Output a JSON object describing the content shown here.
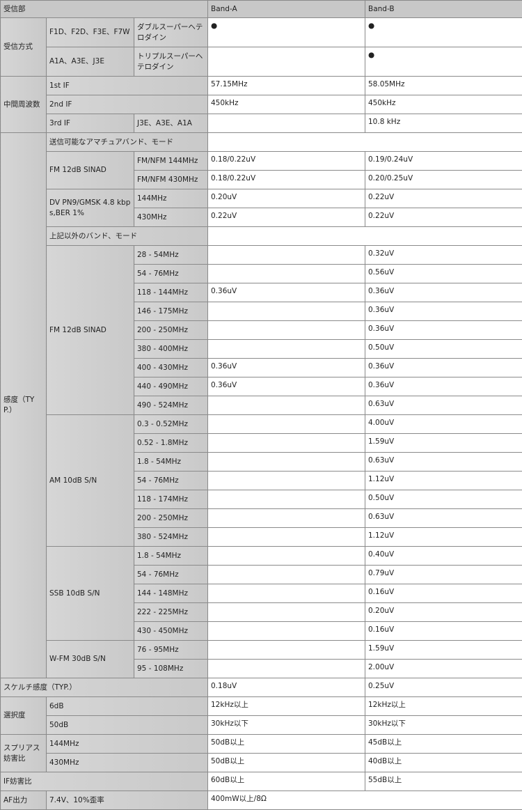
{
  "header": {
    "title": "受信部",
    "band_a": "Band-A",
    "band_b": "Band-B"
  },
  "reception": {
    "label": "受信方式",
    "rows": [
      {
        "mode": "F1D、F2D、F3E、F7W",
        "type": "ダブルスーパーヘテロダイン",
        "a": "●",
        "b": "●"
      },
      {
        "mode": "A1A、A3E、J3E",
        "type": "トリプルスーパーヘテロダイン",
        "a": "",
        "b": "●"
      }
    ]
  },
  "if": {
    "label": "中間周波数",
    "rows": [
      {
        "name": "1st IF",
        "a": "57.15MHz",
        "b": "58.05MHz"
      },
      {
        "name": "2nd IF",
        "a": "450kHz",
        "b": "450kHz"
      },
      {
        "name": "3rd IF",
        "modes": "J3E、A3E、A1A",
        "a": "",
        "b": "10.8 kHz"
      }
    ]
  },
  "sensitivity": {
    "label": "感度（TYP.）",
    "amateur_label": "送信可能なアマチュアバンド、モード",
    "fm": {
      "label": "FM 12dB SINAD",
      "rows": [
        {
          "band": "FM/NFM 144MHz",
          "a": "0.18/0.22uV",
          "b": "0.19/0.24uV"
        },
        {
          "band": "FM/NFM 430MHz",
          "a": "0.18/0.22uV",
          "b": "0.20/0.25uV"
        }
      ]
    },
    "dv": {
      "label": "DV PN9/GMSK 4.8 kbps,BER 1%",
      "rows": [
        {
          "band": "144MHz",
          "a": "0.20uV",
          "b": "0.22uV"
        },
        {
          "band": "430MHz",
          "a": "0.22uV",
          "b": "0.22uV"
        }
      ]
    },
    "other_label": "上記以外のバンド、モード",
    "fm2": {
      "label": "FM 12dB SINAD",
      "rows": [
        {
          "band": "28 - 54MHz",
          "a": "",
          "b": "0.32uV"
        },
        {
          "band": "54 - 76MHz",
          "a": "",
          "b": "0.56uV"
        },
        {
          "band": "118 - 144MHz",
          "a": "0.36uV",
          "b": "0.36uV"
        },
        {
          "band": "146 - 175MHz",
          "a": "",
          "b": "0.36uV"
        },
        {
          "band": "200 - 250MHz",
          "a": "",
          "b": "0.36uV"
        },
        {
          "band": "380 - 400MHz",
          "a": "",
          "b": "0.50uV"
        },
        {
          "band": "400 - 430MHz",
          "a": "0.36uV",
          "b": "0.36uV"
        },
        {
          "band": "440 - 490MHz",
          "a": "0.36uV",
          "b": "0.36uV"
        },
        {
          "band": "490 - 524MHz",
          "a": "",
          "b": "0.63uV"
        }
      ]
    },
    "am": {
      "label": "AM 10dB S/N",
      "rows": [
        {
          "band": "0.3 - 0.52MHz",
          "a": "",
          "b": "4.00uV"
        },
        {
          "band": "0.52 - 1.8MHz",
          "a": "",
          "b": "1.59uV"
        },
        {
          "band": "1.8 - 54MHz",
          "a": "",
          "b": "0.63uV"
        },
        {
          "band": "54 - 76MHz",
          "a": "",
          "b": "1.12uV"
        },
        {
          "band": "118 - 174MHz",
          "a": "",
          "b": "0.50uV"
        },
        {
          "band": "200 - 250MHz",
          "a": "",
          "b": "0.63uV"
        },
        {
          "band": "380 - 524MHz",
          "a": "",
          "b": "1.12uV"
        }
      ]
    },
    "ssb": {
      "label": "SSB 10dB S/N",
      "rows": [
        {
          "band": "1.8 - 54MHz",
          "a": "",
          "b": "0.40uV"
        },
        {
          "band": "54 - 76MHz",
          "a": "",
          "b": "0.79uV"
        },
        {
          "band": "144 - 148MHz",
          "a": "",
          "b": "0.16uV"
        },
        {
          "band": "222 - 225MHz",
          "a": "",
          "b": "0.20uV"
        },
        {
          "band": "430 - 450MHz",
          "a": "",
          "b": "0.16uV"
        }
      ]
    },
    "wfm": {
      "label": "W-FM 30dB S/N",
      "rows": [
        {
          "band": "76 - 95MHz",
          "a": "",
          "b": "1.59uV"
        },
        {
          "band": "95 - 108MHz",
          "a": "",
          "b": "2.00uV"
        }
      ]
    }
  },
  "squelch": {
    "label": "スケルチ感度（TYP.）",
    "a": "0.18uV",
    "b": "0.25uV"
  },
  "selectivity": {
    "label": "選択度",
    "rows": [
      {
        "name": "6dB",
        "a": "12kHz以上",
        "b": "12kHz以上"
      },
      {
        "name": "50dB",
        "a": "30kHz以下",
        "b": "30kHz以下"
      }
    ]
  },
  "spurious": {
    "label": "スプリアス妨害比",
    "rows": [
      {
        "name": "144MHz",
        "a": "50dB以上",
        "b": "45dB以上"
      },
      {
        "name": "430MHz",
        "a": "50dB以上",
        "b": "40dB以上"
      }
    ]
  },
  "if_rejection": {
    "label": "IF妨害比",
    "a": "60dB以上",
    "b": "55dB以上"
  },
  "af_output": {
    "label": "AF出力",
    "condition": "7.4V、10%歪率",
    "value": "400mW以上/8Ω"
  }
}
